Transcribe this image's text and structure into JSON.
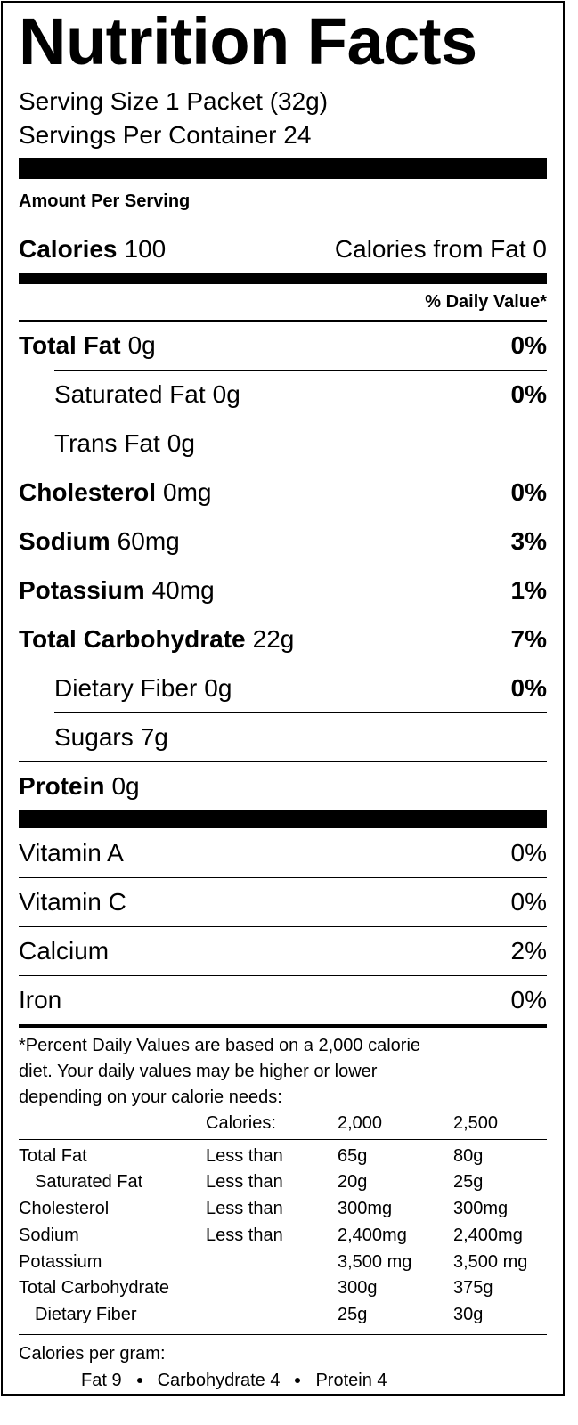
{
  "title": "Nutrition Facts",
  "serving_size": "Serving Size 1 Packet (32g)",
  "servings_per_container": "Servings Per Container 24",
  "amount_per_serving": "Amount Per Serving",
  "calories": {
    "label": "Calories",
    "amount": "100",
    "from_fat": "Calories from Fat 0"
  },
  "daily_value_header": "% Daily Value*",
  "nutrients": [
    {
      "name": "Total Fat",
      "amount": "0g",
      "daily_value": "0%"
    },
    {
      "name": "Saturated Fat",
      "amount": "0g",
      "daily_value": "0%"
    },
    {
      "name": "Trans Fat",
      "amount": "0g"
    },
    {
      "name": "Cholesterol",
      "amount": "0mg",
      "daily_value": "0%"
    },
    {
      "name": "Sodium",
      "amount": "60mg",
      "daily_value": "3%"
    },
    {
      "name": "Potassium",
      "amount": "40mg",
      "daily_value": "1%"
    },
    {
      "name": "Total Carbohydrate",
      "amount": "22g",
      "daily_value": "7%"
    },
    {
      "name": "Dietary Fiber",
      "amount": "0g",
      "daily_value": "0%"
    },
    {
      "name": "Sugars",
      "amount": "7g"
    },
    {
      "name": "Protein",
      "amount": "0g"
    }
  ],
  "vitamins": [
    {
      "name": "Vitamin A",
      "daily_value": "0%"
    },
    {
      "name": "Vitamin C",
      "daily_value": "0%"
    },
    {
      "name": "Calcium",
      "daily_value": "2%"
    },
    {
      "name": "Iron",
      "daily_value": "0%"
    }
  ],
  "footnote": {
    "lines": [
      "*Percent Daily Values are based on a 2,000 calorie",
      "diet. Your daily values may be higher or lower",
      "depending on your calorie needs:"
    ],
    "table": {
      "header": [
        "Calories:",
        "2,000",
        "2,500"
      ],
      "rows": [
        {
          "nutrient": "Total Fat",
          "limit": "Less than",
          "amounts": [
            "65g",
            "80g"
          ]
        },
        {
          "nutrient": "Saturated Fat",
          "limit": "Less than",
          "amounts": [
            "20g",
            "25g"
          ]
        },
        {
          "nutrient": "Cholesterol",
          "limit": "Less than",
          "amounts": [
            "300mg",
            "300mg"
          ]
        },
        {
          "nutrient": "Sodium",
          "limit": "Less than",
          "amounts": [
            "2,400mg",
            "2,400mg"
          ]
        },
        {
          "nutrient": "Potassium",
          "amounts": [
            "3,500 mg",
            "3,500 mg"
          ]
        },
        {
          "nutrient": "Total Carbohydrate",
          "amounts": [
            "300g",
            "375g"
          ]
        },
        {
          "nutrient": "Dietary Fiber",
          "amounts": [
            "25g",
            "30g"
          ]
        }
      ]
    }
  },
  "calories_per_gram": {
    "label": "Calories per gram:",
    "items": [
      "Fat 9",
      "Carbohydrate 4",
      "Protein 4"
    ]
  }
}
